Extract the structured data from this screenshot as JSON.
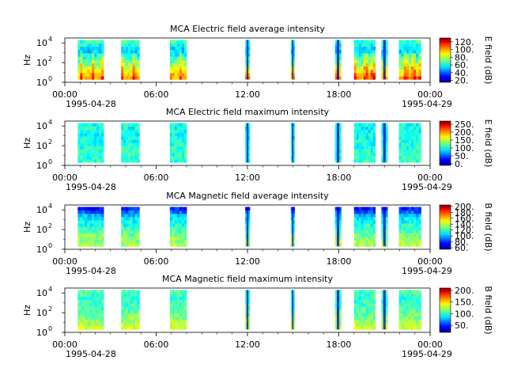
{
  "chart_data": [
    {
      "type": "heatmap",
      "title": "MCA  Electric field average intensity",
      "ylabel": "Hz",
      "yticks": [
        "10",
        "10",
        "10"
      ],
      "ytick_exps": [
        "0",
        "2",
        "4"
      ],
      "ylim_log10": [
        0,
        4.5
      ],
      "xticks": [
        "00:00",
        "06:00",
        "12:00",
        "18:00",
        "00:00"
      ],
      "xlim_hours": [
        0,
        24
      ],
      "date_start": "1995-04-28",
      "date_end": "1995-04-29",
      "cbar_label": "E field (dB)",
      "cbar_ticks": [
        "20.",
        "40.",
        "60.",
        "80.",
        "100.",
        "120."
      ],
      "cbar_range": [
        15,
        130
      ],
      "colormap": "jet",
      "segments_hours": [
        [
          0.85,
          2.55
        ],
        [
          3.7,
          4.9
        ],
        [
          6.9,
          8.0
        ],
        [
          11.85,
          12.15
        ],
        [
          14.85,
          15.1
        ],
        [
          17.75,
          18.15
        ],
        [
          19.0,
          20.4
        ],
        [
          20.8,
          21.2
        ],
        [
          21.95,
          23.4
        ]
      ],
      "spectrum_level": [
        0.75,
        0.6,
        0.45,
        0.32,
        0.45
      ]
    },
    {
      "type": "heatmap",
      "title": "MCA  Electric field maximum intensity",
      "ylabel": "Hz",
      "yticks": [
        "10",
        "10",
        "10"
      ],
      "ytick_exps": [
        "0",
        "2",
        "4"
      ],
      "ylim_log10": [
        0,
        4.5
      ],
      "xticks": [
        "00:00",
        "06:00",
        "12:00",
        "18:00",
        "00:00"
      ],
      "xlim_hours": [
        0,
        24
      ],
      "date_start": "1995-04-28",
      "date_end": "1995-04-29",
      "cbar_label": "E field (dB)",
      "cbar_ticks": [
        "0.",
        "50.",
        "100.",
        "150.",
        "200.",
        "250."
      ],
      "cbar_range": [
        -10,
        270
      ],
      "colormap": "jet",
      "segments_hours": [
        [
          0.85,
          2.55
        ],
        [
          3.7,
          4.9
        ],
        [
          6.9,
          8.0
        ],
        [
          11.85,
          12.15
        ],
        [
          14.85,
          15.1
        ],
        [
          17.75,
          18.15
        ],
        [
          19.0,
          20.4
        ],
        [
          20.8,
          21.2
        ],
        [
          21.95,
          23.4
        ]
      ],
      "spectrum_level": [
        0.42,
        0.42,
        0.4,
        0.38,
        0.4
      ]
    },
    {
      "type": "heatmap",
      "title": "MCA  Magnetic field average intensity",
      "ylabel": "Hz",
      "yticks": [
        "10",
        "10",
        "10"
      ],
      "ytick_exps": [
        "0",
        "2",
        "4"
      ],
      "ylim_log10": [
        0,
        4.5
      ],
      "xticks": [
        "00:00",
        "06:00",
        "12:00",
        "18:00",
        "00:00"
      ],
      "xlim_hours": [
        0,
        24
      ],
      "date_start": "1995-04-28",
      "date_end": "1995-04-29",
      "cbar_label": "B field (dB)",
      "cbar_ticks": [
        "60.",
        "80.",
        "100.",
        "120.",
        "140.",
        "160.",
        "180.",
        "200."
      ],
      "cbar_range": [
        55,
        205
      ],
      "colormap": "jet",
      "segments_hours": [
        [
          0.85,
          2.55
        ],
        [
          3.7,
          4.9
        ],
        [
          6.9,
          8.0
        ],
        [
          11.85,
          12.15
        ],
        [
          14.85,
          15.1
        ],
        [
          17.75,
          18.15
        ],
        [
          19.0,
          20.4
        ],
        [
          20.8,
          21.2
        ],
        [
          21.95,
          23.4
        ]
      ],
      "spectrum_level": [
        0.55,
        0.5,
        0.42,
        0.35,
        0.1
      ]
    },
    {
      "type": "heatmap",
      "title": "MCA  Magnetic field maximum intensity",
      "ylabel": "Hz",
      "yticks": [
        "10",
        "10",
        "10"
      ],
      "ytick_exps": [
        "0",
        "2",
        "4"
      ],
      "ylim_log10": [
        0,
        4.5
      ],
      "xticks": [
        "00:00",
        "06:00",
        "12:00",
        "18:00",
        "00:00"
      ],
      "xlim_hours": [
        0,
        24
      ],
      "date_start": "1995-04-28",
      "date_end": "1995-04-29",
      "cbar_label": "B field (dB)",
      "cbar_ticks": [
        "50.",
        "100.",
        "150.",
        "200."
      ],
      "cbar_range": [
        20,
        210
      ],
      "colormap": "jet",
      "segments_hours": [
        [
          0.85,
          2.55
        ],
        [
          3.7,
          4.9
        ],
        [
          6.9,
          8.0
        ],
        [
          11.85,
          12.15
        ],
        [
          14.85,
          15.1
        ],
        [
          17.75,
          18.15
        ],
        [
          19.0,
          20.4
        ],
        [
          20.8,
          21.2
        ],
        [
          21.95,
          23.4
        ]
      ],
      "spectrum_level": [
        0.6,
        0.52,
        0.45,
        0.42,
        0.45
      ]
    }
  ]
}
